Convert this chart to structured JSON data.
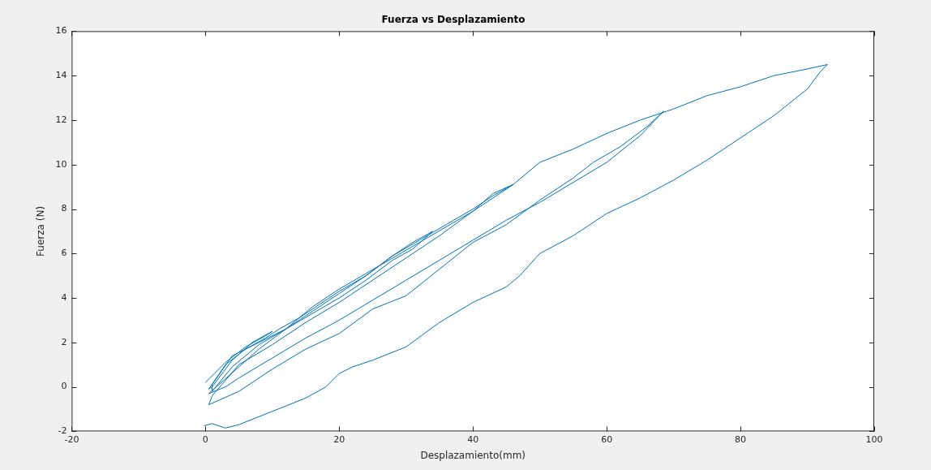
{
  "chart_data": {
    "type": "line",
    "title": "Fuerza vs Desplazamiento",
    "xlabel": "Desplazamiento(mm)",
    "ylabel": "Fuerza (N)",
    "xlim": [
      -20,
      100
    ],
    "ylim": [
      -2,
      16
    ],
    "xticks": [
      -20,
      0,
      20,
      40,
      60,
      80,
      100
    ],
    "yticks": [
      -2,
      0,
      2,
      4,
      6,
      8,
      10,
      12,
      14,
      16
    ],
    "grid": false,
    "legend": false,
    "marker": "none",
    "line_style": "solid",
    "series": [
      {
        "color": "#0072bd",
        "x": [
          0,
          3,
          6,
          9,
          10,
          7,
          4,
          1,
          0.5,
          3,
          6,
          9,
          11,
          14,
          17,
          20,
          24,
          28,
          31,
          34,
          31,
          28,
          24,
          20,
          16,
          12,
          8,
          4,
          1,
          1,
          4,
          8,
          12,
          16,
          20,
          24,
          28,
          32,
          36,
          40,
          43,
          46,
          43,
          40,
          36,
          32,
          28,
          24,
          20,
          16,
          12,
          8,
          5,
          2,
          0.5,
          3,
          5,
          10,
          15,
          20,
          25,
          30,
          35,
          40,
          45,
          50,
          55,
          60,
          65,
          68.5,
          66,
          62,
          58,
          55,
          50,
          45,
          40,
          35,
          30,
          25,
          20,
          15,
          10,
          5,
          0.5,
          1,
          5,
          10,
          15,
          20,
          25,
          30,
          35,
          40,
          46,
          50,
          55,
          60,
          65,
          70,
          75,
          80,
          85,
          90,
          93,
          92,
          90,
          85,
          80,
          75,
          70,
          65,
          60,
          55,
          50,
          47,
          45,
          40,
          35,
          30,
          25,
          22,
          20,
          18,
          15,
          10,
          5,
          3,
          1,
          -0.2
        ],
        "values": [
          0.2,
          1.1,
          1.8,
          2.3,
          2.5,
          2.0,
          1.2,
          0.0,
          -0.1,
          1.0,
          1.7,
          2.2,
          2.6,
          3.1,
          3.7,
          4.3,
          5.0,
          5.9,
          6.5,
          7.0,
          6.2,
          5.7,
          4.8,
          4.0,
          3.3,
          2.6,
          1.9,
          0.9,
          -0.2,
          0.1,
          1.4,
          2.0,
          2.6,
          3.4,
          4.2,
          5.0,
          5.9,
          6.6,
          7.3,
          8.0,
          8.6,
          9.1,
          8.7,
          7.9,
          7.2,
          6.5,
          5.8,
          5.1,
          4.4,
          3.6,
          2.6,
          1.7,
          0.9,
          0.1,
          -0.3,
          0.0,
          0.4,
          1.3,
          2.2,
          3.0,
          3.9,
          4.8,
          5.7,
          6.6,
          7.5,
          8.3,
          9.2,
          10.1,
          11.3,
          12.4,
          11.7,
          10.8,
          10.1,
          9.4,
          8.4,
          7.3,
          6.5,
          5.3,
          4.1,
          3.5,
          2.4,
          1.7,
          0.8,
          -0.2,
          -0.8,
          -0.4,
          1.0,
          1.9,
          2.9,
          3.8,
          4.8,
          5.8,
          6.8,
          7.9,
          9.1,
          10.1,
          10.7,
          11.4,
          12.0,
          12.5,
          13.1,
          13.5,
          14.0,
          14.3,
          14.5,
          14.2,
          13.4,
          12.2,
          11.2,
          10.2,
          9.3,
          8.5,
          7.8,
          6.8,
          6.0,
          5.0,
          4.5,
          3.8,
          2.9,
          1.8,
          1.2,
          0.9,
          0.6,
          0.0,
          -0.5,
          -1.1,
          -1.7,
          -1.85,
          -1.65,
          -1.75
        ]
      }
    ]
  }
}
